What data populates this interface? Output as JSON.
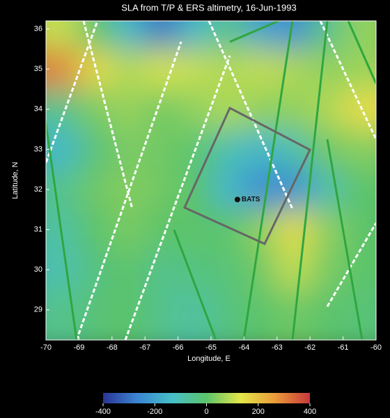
{
  "chart_data": {
    "type": "heatmap",
    "title": "SLA from T/P & ERS altimetry, 16-Jun-1993",
    "xlabel": "Longitude, E",
    "ylabel": "Latitude, N",
    "x": [
      -69.5,
      -68.5,
      -67.5,
      -66.5,
      -65.5,
      -64.5,
      -63.5,
      -62.5,
      -61.5,
      -60.5
    ],
    "y": [
      36,
      35,
      34,
      33,
      32,
      31,
      30,
      29
    ],
    "z": [
      [
        100,
        0,
        -150,
        -300,
        -150,
        -50,
        -200,
        -250,
        -50,
        50
      ],
      [
        300,
        150,
        80,
        120,
        100,
        80,
        100,
        80,
        50,
        60
      ],
      [
        -50,
        30,
        60,
        20,
        50,
        80,
        50,
        50,
        80,
        150
      ],
      [
        -150,
        -20,
        30,
        20,
        0,
        -100,
        -150,
        -100,
        20,
        40
      ],
      [
        -50,
        20,
        40,
        20,
        0,
        -150,
        -250,
        -250,
        -100,
        0
      ],
      [
        -80,
        0,
        30,
        0,
        0,
        0,
        50,
        150,
        50,
        0
      ],
      [
        -100,
        -30,
        0,
        -50,
        -30,
        -20,
        20,
        100,
        30,
        0
      ],
      [
        -50,
        -20,
        0,
        -50,
        -80,
        -30,
        0,
        20,
        0,
        -20
      ]
    ],
    "xlim": [
      -70,
      -60
    ],
    "ylim": [
      28.25,
      36.2
    ],
    "xticks": [
      -70,
      -69,
      -68,
      -67,
      -66,
      -65,
      -64,
      -63,
      -62,
      -61,
      -60
    ],
    "yticks": [
      29,
      30,
      31,
      32,
      33,
      34,
      35,
      36
    ],
    "clim": [
      -400,
      400
    ],
    "cticks": [
      -400,
      -200,
      0,
      200,
      400
    ],
    "colormap": [
      "#2a3596",
      "#3a86d2",
      "#46bfc8",
      "#5cc46a",
      "#e6e64a",
      "#e89a3a",
      "#c8383a"
    ],
    "annotations": [
      {
        "text": "BATS",
        "x": -64.2,
        "y": 31.75
      }
    ]
  }
}
